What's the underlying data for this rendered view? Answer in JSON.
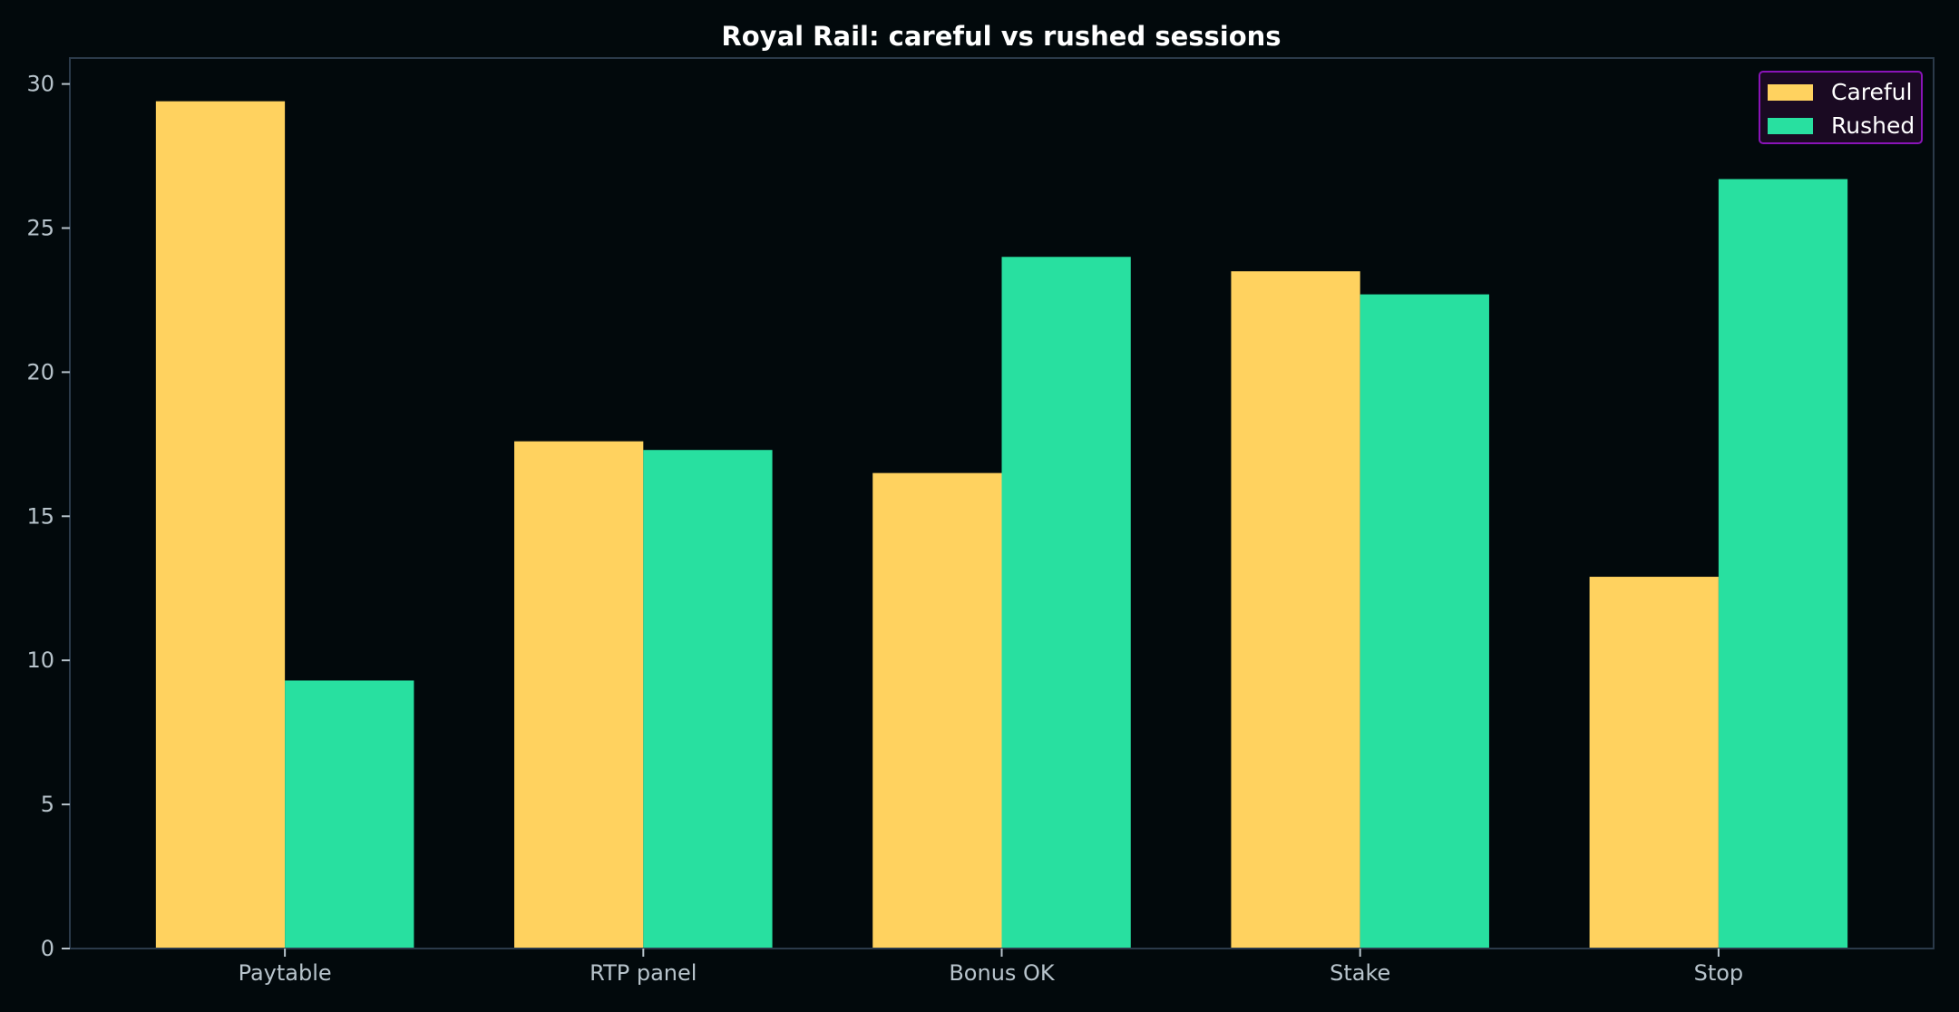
{
  "chart_data": {
    "type": "bar",
    "title": "Royal Rail: careful vs rushed sessions",
    "xlabel": "",
    "ylabel": "",
    "categories": [
      "Paytable",
      "RTP panel",
      "Bonus OK",
      "Stake",
      "Stop"
    ],
    "series": [
      {
        "name": "Careful",
        "color": "#ffd25f",
        "values": [
          29.4,
          17.6,
          16.5,
          23.5,
          12.9
        ]
      },
      {
        "name": "Rushed",
        "color": "#28e0a0",
        "values": [
          9.3,
          17.3,
          24.0,
          22.7,
          26.7
        ]
      }
    ],
    "ylim": [
      0,
      30.9
    ],
    "yticks": [
      "0",
      "5",
      "10",
      "15",
      "20",
      "25",
      "30"
    ],
    "grid": false,
    "legend_position": "top-right",
    "colors": {
      "background": "#02090c",
      "axes_frame": "#2b3a4a",
      "tick_label": "#b8c4cc",
      "title": "#ffffff",
      "legend_border": "#8a14b8",
      "legend_background": "#1a0a22"
    }
  }
}
